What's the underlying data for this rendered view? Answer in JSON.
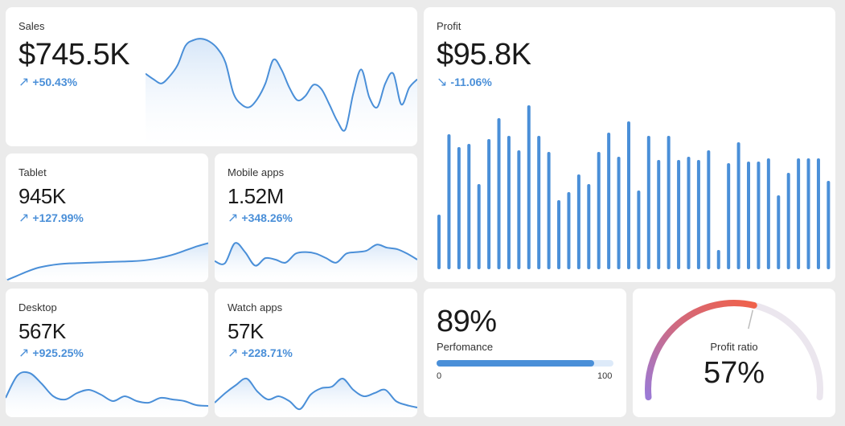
{
  "colors": {
    "accent": "#4a8fd8",
    "fill_top": "#d6e6f8",
    "background": "#ebebeb"
  },
  "sales": {
    "title": "Sales",
    "value": "$745.5K",
    "change": "+50.43%",
    "arrow": "↗"
  },
  "profit": {
    "title": "Profit",
    "value": "$95.8K",
    "change": "-11.06%",
    "arrow": "↘"
  },
  "tablet": {
    "title": "Tablet",
    "value": "945K",
    "change": "+127.99%",
    "arrow": "↗"
  },
  "mobile": {
    "title": "Mobile apps",
    "value": "1.52M",
    "change": "+348.26%",
    "arrow": "↗"
  },
  "desktop": {
    "title": "Desktop",
    "value": "567K",
    "change": "+925.25%",
    "arrow": "↗"
  },
  "watch": {
    "title": "Watch apps",
    "value": "57K",
    "change": "+228.71%",
    "arrow": "↗"
  },
  "performance": {
    "value": "89%",
    "label": "Perfomance",
    "min": "0",
    "max": "100",
    "level": 0.89
  },
  "profit_ratio": {
    "label": "Profit ratio",
    "value": "57%",
    "level": 0.57
  },
  "chart_data": [
    {
      "type": "area",
      "name": "Sales trend",
      "values": [
        52,
        48,
        45,
        50,
        58,
        72,
        76,
        77,
        75,
        70,
        60,
        38,
        30,
        28,
        34,
        45,
        62,
        55,
        42,
        33,
        36,
        44,
        41,
        30,
        18,
        12,
        38,
        55,
        35,
        28,
        45,
        52,
        30,
        42,
        48
      ]
    },
    {
      "type": "bar",
      "name": "Profit trend",
      "values": [
        32,
        82,
        74,
        76,
        51,
        79,
        92,
        81,
        72,
        100,
        81,
        71,
        41,
        46,
        57,
        51,
        71,
        83,
        68,
        90,
        47,
        81,
        66,
        81,
        66,
        68,
        66,
        72,
        10,
        64,
        77,
        65,
        65,
        67,
        44,
        58,
        67,
        67,
        67,
        53,
        78
      ]
    },
    {
      "type": "area",
      "name": "Tablet trend",
      "values": [
        2,
        8,
        14,
        19,
        22,
        24,
        25,
        25.5,
        26,
        26.5,
        27,
        27.5,
        28,
        29,
        31,
        34,
        38,
        43,
        48,
        52
      ]
    },
    {
      "type": "area",
      "name": "Mobile apps trend",
      "values": [
        28,
        25,
        52,
        40,
        22,
        32,
        30,
        26,
        38,
        40,
        38,
        32,
        26,
        38,
        40,
        42,
        50,
        46,
        44,
        38,
        30
      ]
    },
    {
      "type": "area",
      "name": "Desktop trend",
      "values": [
        24,
        52,
        55,
        42,
        26,
        22,
        30,
        34,
        28,
        20,
        26,
        20,
        18,
        24,
        22,
        20,
        15,
        14
      ]
    },
    {
      "type": "area",
      "name": "Watch apps trend",
      "values": [
        18,
        30,
        40,
        48,
        32,
        22,
        26,
        20,
        10,
        28,
        36,
        38,
        48,
        34,
        26,
        30,
        34,
        20,
        15,
        12
      ]
    }
  ]
}
